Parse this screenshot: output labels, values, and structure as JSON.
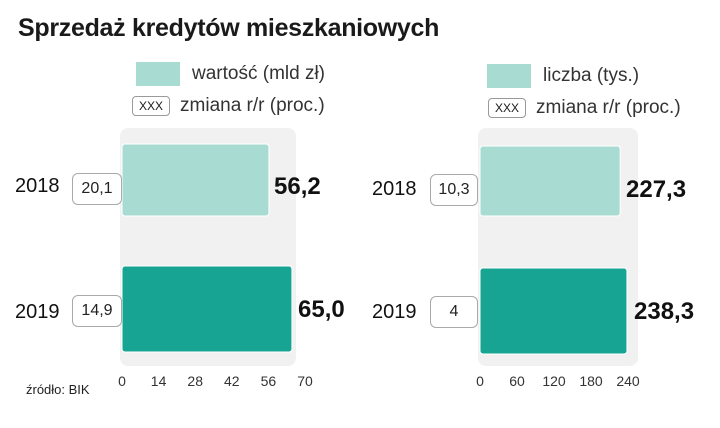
{
  "title": "Sprzedaż kredytów mieszkaniowych",
  "source": "źródło: BIK",
  "legend_box_text": "XXX",
  "colors": {
    "light": "#a8dcd2",
    "dark": "#17a493",
    "plot_bg": "#f1f1f1"
  },
  "chart_data": [
    {
      "type": "bar",
      "orientation": "horizontal",
      "categories": [
        "2018",
        "2019"
      ],
      "series": [
        {
          "name": "wartość (mld zł)",
          "values": [
            56.2,
            65.0
          ]
        },
        {
          "name": "zmiana r/r (proc.)",
          "values": [
            20.1,
            14.9
          ]
        }
      ],
      "value_labels": [
        "56,2",
        "65,0"
      ],
      "change_labels": [
        "20,1",
        "14,9"
      ],
      "xlim": [
        0,
        70
      ],
      "xticks": [
        0,
        14,
        28,
        42,
        56,
        70
      ],
      "legend": [
        "wartość (mld zł)",
        "zmiana r/r (proc.)"
      ]
    },
    {
      "type": "bar",
      "orientation": "horizontal",
      "categories": [
        "2018",
        "2019"
      ],
      "series": [
        {
          "name": "liczba (tys.)",
          "values": [
            227.3,
            238.3
          ]
        },
        {
          "name": "zmiana r/r (proc.)",
          "values": [
            10.3,
            4
          ]
        }
      ],
      "value_labels": [
        "227,3",
        "238,3"
      ],
      "change_labels": [
        "10,3",
        "4"
      ],
      "xlim": [
        0,
        240
      ],
      "xticks": [
        0,
        60,
        120,
        180,
        240
      ],
      "legend": [
        "liczba (tys.)",
        "zmiana r/r (proc.)"
      ]
    }
  ]
}
